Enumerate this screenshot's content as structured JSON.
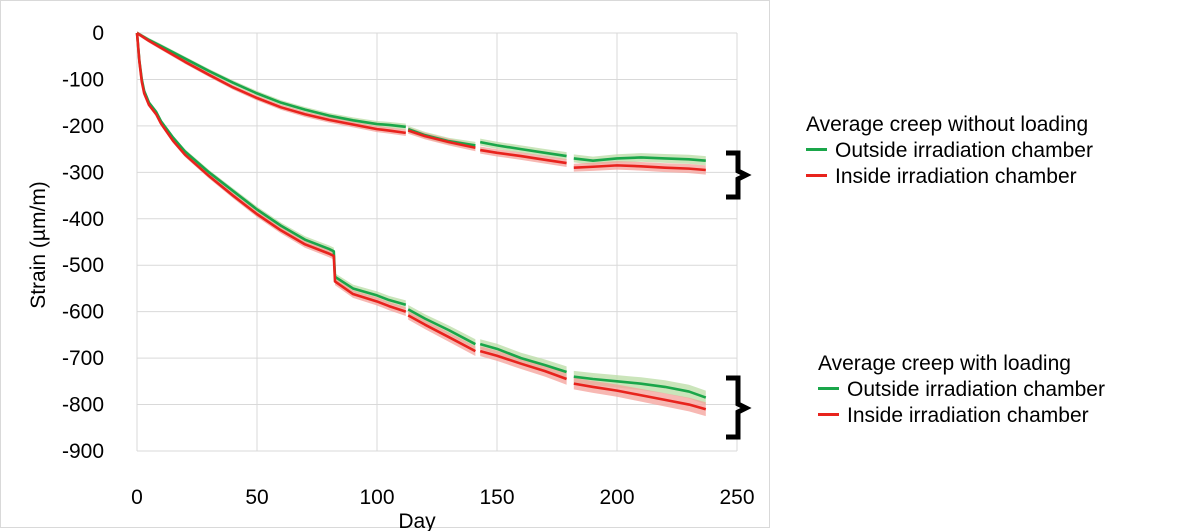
{
  "chart_data": {
    "type": "line",
    "xlabel": "Day",
    "ylabel": "Strain (µm/m)",
    "xlim": [
      0,
      250
    ],
    "ylim": [
      -900,
      0
    ],
    "xticks": [
      0,
      50,
      100,
      150,
      200,
      250
    ],
    "yticks": [
      0,
      -100,
      -200,
      -300,
      -400,
      -500,
      -600,
      -700,
      -800,
      -900
    ],
    "grid": true,
    "segments": [
      [
        0,
        112
      ],
      [
        113,
        141
      ],
      [
        143,
        179
      ],
      [
        182,
        237
      ]
    ],
    "series": [
      {
        "name": "Outside irradiation chamber",
        "group": "Average creep without loading",
        "color": "#1aa64a",
        "x": [
          0,
          5,
          10,
          20,
          30,
          40,
          50,
          60,
          70,
          80,
          90,
          100,
          105,
          112,
          113,
          120,
          130,
          141,
          143,
          150,
          160,
          170,
          179,
          182,
          190,
          200,
          210,
          220,
          230,
          237
        ],
        "y": [
          0,
          -15,
          -28,
          -55,
          -82,
          -107,
          -130,
          -150,
          -165,
          -178,
          -188,
          -196,
          -198,
          -202,
          -207,
          -220,
          -233,
          -242,
          -235,
          -242,
          -250,
          -258,
          -265,
          -270,
          -275,
          -270,
          -268,
          -270,
          -272,
          -275
        ]
      },
      {
        "name": "Inside irradiation chamber",
        "group": "Average creep without loading",
        "color": "#e8231d",
        "x": [
          0,
          5,
          10,
          20,
          30,
          40,
          50,
          60,
          70,
          80,
          90,
          100,
          105,
          112,
          113,
          120,
          130,
          141,
          143,
          150,
          160,
          170,
          179,
          182,
          190,
          200,
          210,
          220,
          230,
          237
        ],
        "y": [
          0,
          -17,
          -32,
          -62,
          -90,
          -117,
          -140,
          -160,
          -175,
          -187,
          -197,
          -207,
          -210,
          -215,
          -210,
          -222,
          -235,
          -247,
          -252,
          -258,
          -265,
          -273,
          -280,
          -290,
          -288,
          -285,
          -287,
          -290,
          -292,
          -295
        ]
      },
      {
        "name": "Outside irradiation chamber",
        "group": "Average creep with loading",
        "color": "#1aa64a",
        "x": [
          0,
          1,
          2,
          3,
          5,
          8,
          10,
          15,
          20,
          30,
          40,
          50,
          60,
          70,
          80,
          82,
          82.5,
          90,
          100,
          105,
          112,
          113,
          120,
          130,
          141,
          143,
          150,
          160,
          170,
          179,
          182,
          190,
          200,
          210,
          220,
          230,
          237
        ],
        "y": [
          0,
          -60,
          -100,
          -125,
          -150,
          -170,
          -190,
          -225,
          -255,
          -300,
          -340,
          -380,
          -415,
          -445,
          -465,
          -470,
          -525,
          -550,
          -565,
          -575,
          -585,
          -595,
          -615,
          -640,
          -670,
          -670,
          -680,
          -700,
          -715,
          -730,
          -740,
          -745,
          -750,
          -755,
          -762,
          -772,
          -785
        ]
      },
      {
        "name": "Inside irradiation chamber",
        "group": "Average creep with loading",
        "color": "#e8231d",
        "x": [
          0,
          1,
          2,
          3,
          5,
          8,
          10,
          15,
          20,
          30,
          40,
          50,
          60,
          70,
          80,
          82,
          82.5,
          90,
          100,
          105,
          112,
          113,
          120,
          130,
          141,
          143,
          150,
          160,
          170,
          179,
          182,
          190,
          200,
          210,
          220,
          230,
          237
        ],
        "y": [
          0,
          -62,
          -105,
          -130,
          -155,
          -175,
          -195,
          -232,
          -262,
          -308,
          -350,
          -390,
          -425,
          -455,
          -475,
          -480,
          -535,
          -562,
          -578,
          -588,
          -600,
          -608,
          -628,
          -655,
          -685,
          -685,
          -695,
          -712,
          -728,
          -745,
          -755,
          -762,
          -770,
          -780,
          -790,
          -800,
          -810
        ]
      }
    ]
  },
  "legend_top": {
    "heading": "Average creep without loading",
    "items": [
      {
        "label": "Outside irradiation chamber",
        "color": "#1aa64a"
      },
      {
        "label": "Inside irradiation chamber",
        "color": "#e8231d"
      }
    ]
  },
  "legend_bottom": {
    "heading": "Average creep with loading",
    "items": [
      {
        "label": "Outside irradiation chamber",
        "color": "#1aa64a"
      },
      {
        "label": "Inside irradiation chamber",
        "color": "#e8231d"
      }
    ]
  }
}
